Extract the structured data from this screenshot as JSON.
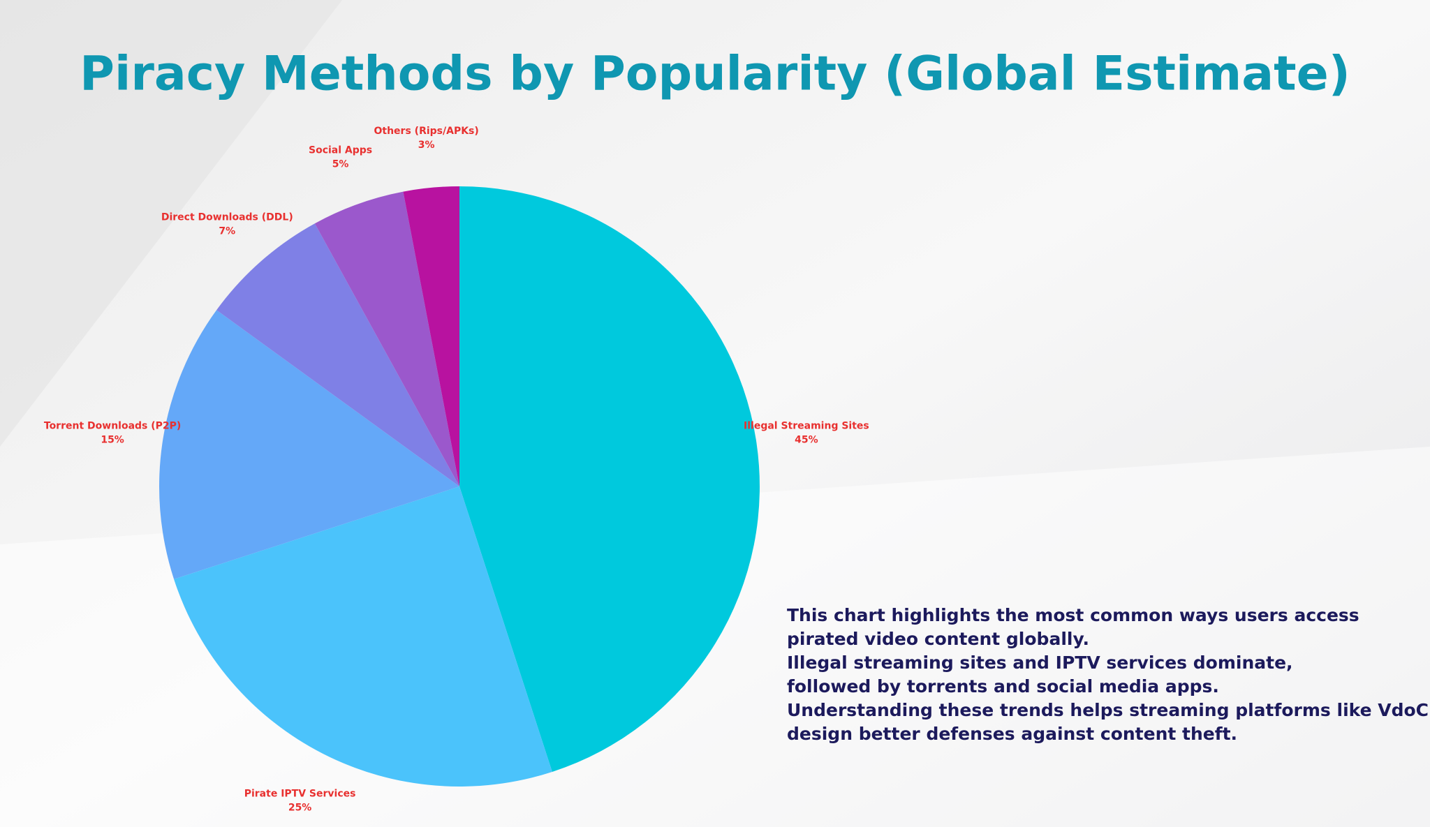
{
  "chart_data": {
    "type": "pie",
    "title": "Piracy Methods by Popularity (Global Estimate)",
    "categories": [
      "Illegal Streaming Sites",
      "Pirate IPTV Services",
      "Torrent Downloads (P2P)",
      "Direct Downloads (DDL)",
      "Social Apps",
      "Others (Rips/APKs)"
    ],
    "values": [
      45,
      25,
      15,
      7,
      5,
      3
    ],
    "value_labels": [
      "45%",
      "25%",
      "15%",
      "7%",
      "5%",
      "3%"
    ],
    "colors": [
      "#00c9dd",
      "#4bc3fb",
      "#64a8f8",
      "#7f80e6",
      "#9b58cc",
      "#b812a0"
    ],
    "note": [
      "This chart highlights the most common ways users access",
      "pirated video content globally.",
      "Illegal streaming sites and IPTV services dominate,",
      "followed by torrents and social media apps.",
      "Understanding these trends helps streaming platforms like VdoCipher",
      "design better defenses against content theft."
    ]
  }
}
